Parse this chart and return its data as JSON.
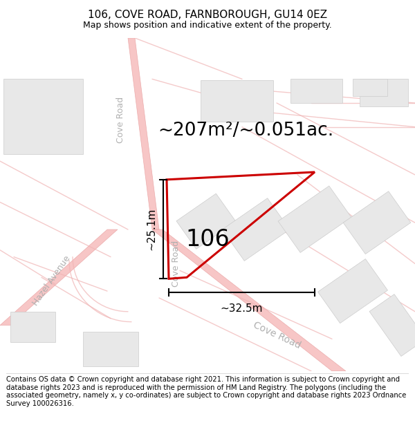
{
  "title": "106, COVE ROAD, FARNBOROUGH, GU14 0EZ",
  "subtitle": "Map shows position and indicative extent of the property.",
  "footer": "Contains OS data © Crown copyright and database right 2021. This information is subject to Crown copyright and database rights 2023 and is reproduced with the permission of HM Land Registry. The polygons (including the associated geometry, namely x, y co-ordinates) are subject to Crown copyright and database rights 2023 Ordnance Survey 100026316.",
  "area_label": "~207m²/~0.051ac.",
  "house_number": "106",
  "dim_width": "~32.5m",
  "dim_height": "~25.1m",
  "plot_color": "#cc0000",
  "title_fontsize": 11,
  "subtitle_fontsize": 9,
  "footer_fontsize": 7.2,
  "area_fontsize": 19,
  "building_fill": "#e8e8e8",
  "building_edge": "#cccccc",
  "road_fill": "#f5c8c8",
  "road_edge": "#e8a0a0",
  "road_label_color": "#b0b0b0",
  "map_bg": "#ffffff"
}
